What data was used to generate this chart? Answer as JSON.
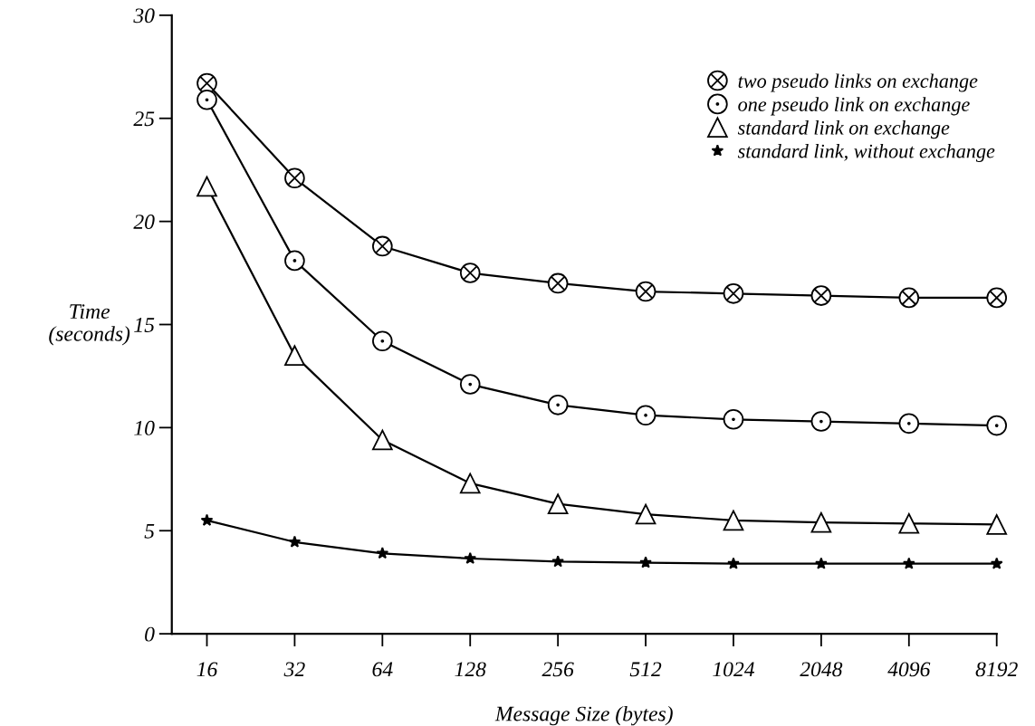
{
  "chart_data": {
    "type": "line",
    "xlabel": "Message Size (bytes)",
    "ylabel": "Time\n(seconds)",
    "categories": [
      "16",
      "32",
      "64",
      "128",
      "256",
      "512",
      "1024",
      "2048",
      "4096",
      "8192"
    ],
    "ylim": [
      0,
      30
    ],
    "yticks": [
      0,
      5,
      10,
      15,
      20,
      25,
      30
    ],
    "grid": false,
    "legend": "top right",
    "line_style": "solid",
    "series": [
      {
        "name": "two pseudo links on exchange",
        "color": "#000000",
        "marker": "cross",
        "values": [
          26.7,
          22.1,
          18.8,
          17.5,
          17.0,
          16.6,
          16.5,
          16.4,
          16.3,
          16.3
        ]
      },
      {
        "name": "one pseudo link on exchange",
        "color": "#000000",
        "marker": "circle",
        "values": [
          25.9,
          18.1,
          14.2,
          12.1,
          11.1,
          10.6,
          10.4,
          10.3,
          10.2,
          10.1
        ]
      },
      {
        "name": "standard link on exchange",
        "color": "#000000",
        "marker": "triangle",
        "values": [
          21.7,
          13.5,
          9.4,
          7.3,
          6.3,
          5.8,
          5.5,
          5.4,
          5.35,
          5.3
        ]
      },
      {
        "name": "standard link, without exchange",
        "color": "#000000",
        "marker": "star",
        "values": [
          5.5,
          4.45,
          3.9,
          3.65,
          3.5,
          3.45,
          3.4,
          3.4,
          3.4,
          3.4
        ]
      }
    ]
  }
}
